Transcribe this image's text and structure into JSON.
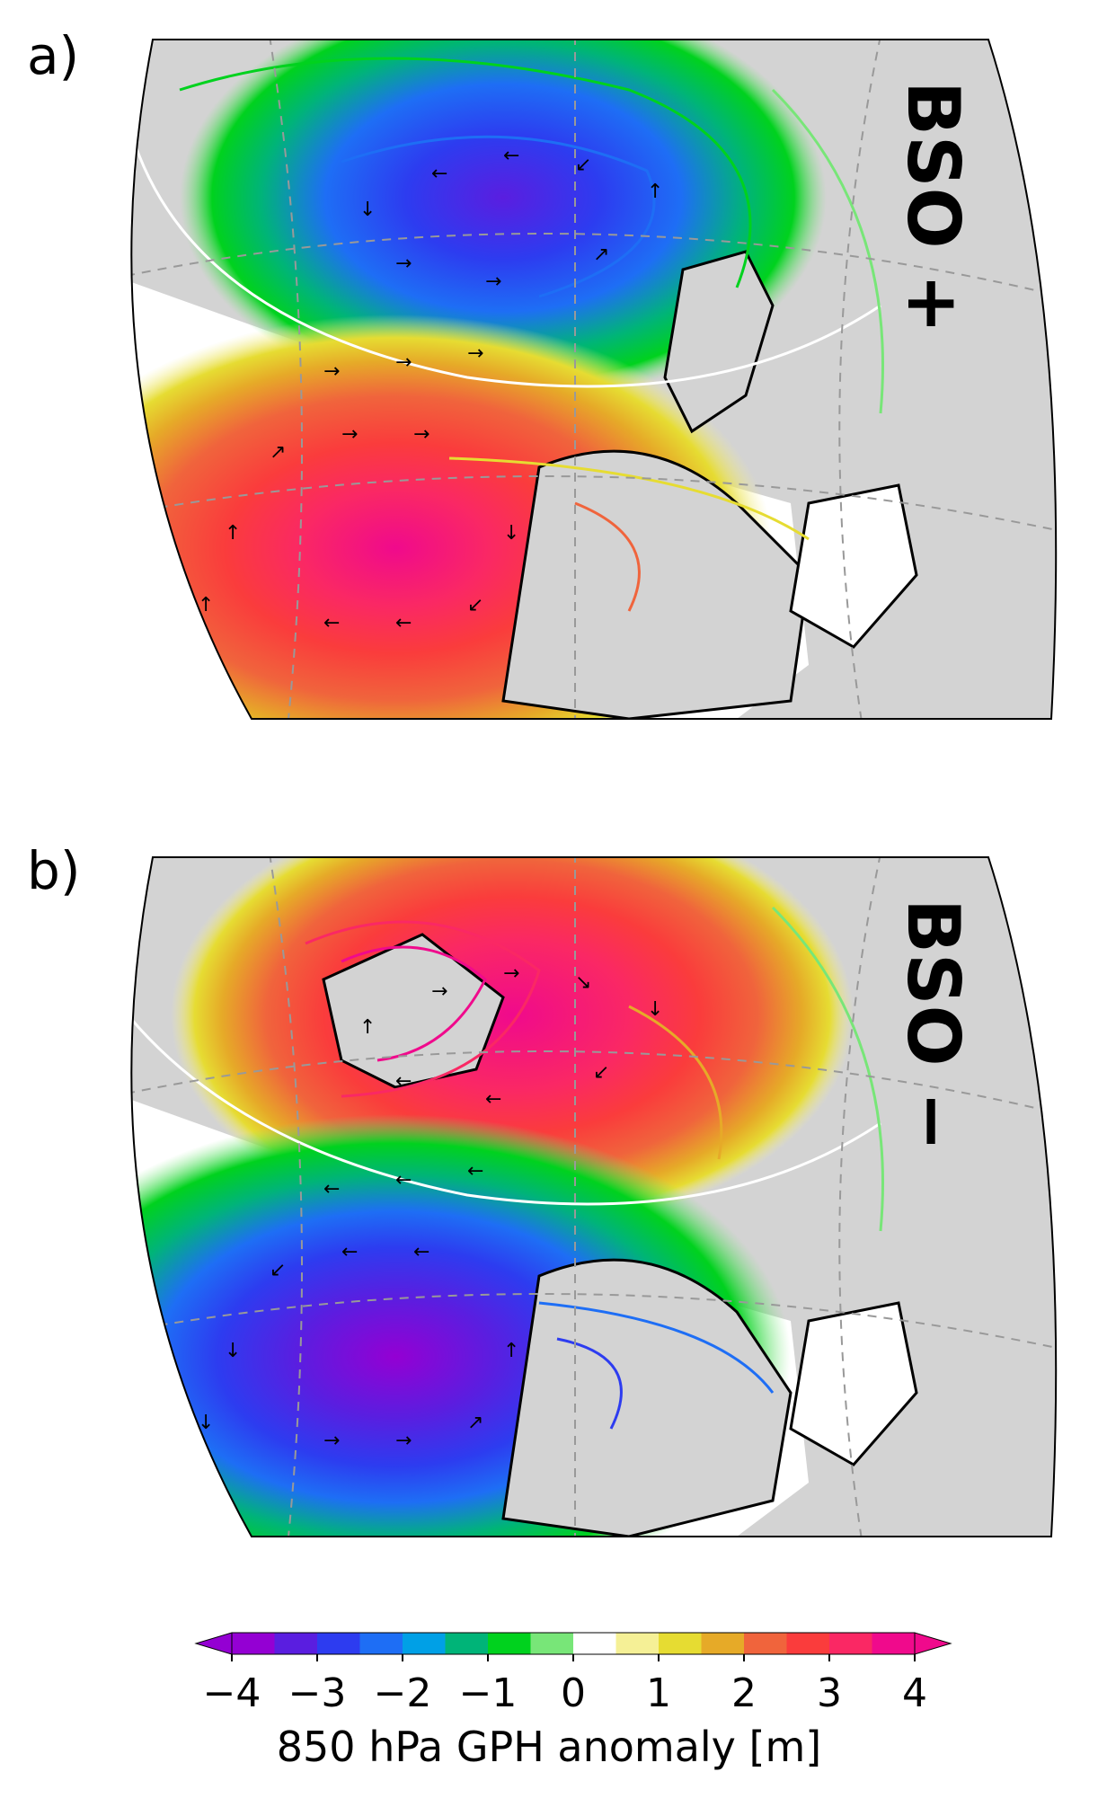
{
  "panels": [
    {
      "label": "a)",
      "title": "BSO +"
    },
    {
      "label": "b)",
      "title": "BSO −"
    }
  ],
  "colorbar": {
    "label": "850 hPa GPH anomaly [m]",
    "ticks": [
      "−4",
      "−3",
      "−2",
      "−1",
      "0",
      "1",
      "2",
      "3",
      "4"
    ],
    "tick_values": [
      -4,
      -3,
      -2,
      -1,
      0,
      1,
      2,
      3,
      4
    ],
    "extend": "both",
    "colors": [
      "#9400d3",
      "#5a1ee0",
      "#2d3cf0",
      "#1e6ef5",
      "#00a0e6",
      "#00b478",
      "#00d21e",
      "#78e678",
      "#ffffff",
      "#f5f096",
      "#e6dc32",
      "#e6aa28",
      "#f0643c",
      "#fa3c3c",
      "#fa2864",
      "#f00a8c"
    ],
    "under_color": "#9400d3",
    "over_color": "#f00a8c"
  },
  "map_colors": {
    "land": "#d3d3d3",
    "coast": "#000000",
    "ice": "#ffffff",
    "grid": "#999999"
  }
}
